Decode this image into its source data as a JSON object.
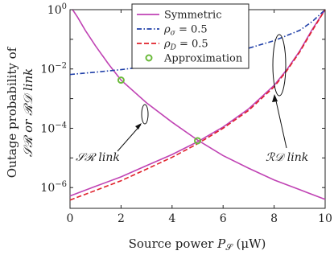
{
  "chart_data": {
    "type": "line",
    "xlabel_prefix": "Source power ",
    "xlabel_var": "P",
    "xlabel_sub": "𝒮",
    "xlabel_unit": " (μW)",
    "ylabel_line1": "Outage probability of",
    "ylabel_line2": "𝒮ℛ or ℛ𝒟 link",
    "xlim": [
      0,
      10
    ],
    "ylim_log10": [
      -6.7,
      0
    ],
    "log_scale_y": true,
    "grid": false,
    "x_ticks": [
      0,
      2,
      4,
      6,
      8,
      10
    ],
    "x_tick_labels": [
      "0",
      "2",
      "4",
      "6",
      "8",
      "10"
    ],
    "y_ticks_exp": [
      0,
      -2,
      -4,
      -6
    ],
    "y_tick_labels": [
      {
        "base": "10",
        "exp": "0"
      },
      {
        "base": "10",
        "exp": "−2"
      },
      {
        "base": "10",
        "exp": "−4"
      },
      {
        "base": "10",
        "exp": "−6"
      }
    ],
    "legend_position": "top-right",
    "legend": [
      {
        "label": "Symmetric",
        "style": "solid",
        "color": "#c043b4"
      },
      {
        "label": "ρσ = 0.5",
        "label_main": "ρ",
        "label_sub": "σ",
        "label_rest": " = 0.5",
        "style": "dashdot",
        "color": "#1f3fa8"
      },
      {
        "label": "ρD = 0.5",
        "label_main": "ρ",
        "label_sub": "D",
        "label_rest": " = 0.5",
        "style": "dashed",
        "color": "#e0202a"
      },
      {
        "label": "Approximation",
        "style": "marker",
        "color": "#6aba3a"
      }
    ],
    "series": [
      {
        "name": "Symmetric",
        "style": "solid",
        "color": "#c043b4",
        "segments": [
          {
            "x": [
              0.1,
              0.3,
              0.6,
              1,
              1.5,
              2,
              3,
              4,
              5,
              6,
              7,
              8,
              9,
              10
            ],
            "y": [
              1.0,
              0.55,
              0.2,
              0.06,
              0.015,
              0.0042,
              0.00072,
              0.00016,
              4e-05,
              1.2e-05,
              4.5e-06,
              1.8e-06,
              8.5e-07,
              4e-07
            ]
          },
          {
            "x": [
              0,
              1,
              2,
              3,
              4,
              5,
              6,
              7,
              8,
              8.5,
              9,
              9.5,
              10
            ],
            "y": [
              5.2e-07,
              1.1e-06,
              2.3e-06,
              5.5e-06,
              1.3e-05,
              3.5e-05,
              0.00011,
              0.00045,
              0.0028,
              0.0095,
              0.04,
              0.22,
              1.0
            ]
          }
        ]
      },
      {
        "name": "ρσ = 0.5",
        "style": "dashdot",
        "color": "#1f3fa8",
        "segments": [
          {
            "x": [
              0,
              1,
              2,
              3,
              4,
              5,
              6,
              7,
              8,
              9,
              9.5,
              10
            ],
            "y": [
              0.0065,
              0.0078,
              0.0095,
              0.012,
              0.016,
              0.022,
              0.032,
              0.05,
              0.09,
              0.2,
              0.4,
              1.0
            ]
          }
        ]
      },
      {
        "name": "ρD = 0.5",
        "style": "dashed",
        "color": "#e0202a",
        "segments": [
          {
            "x": [
              0,
              1,
              2,
              3,
              4,
              5,
              6,
              7,
              8,
              8.5,
              9,
              9.5,
              10
            ],
            "y": [
              3.8e-07,
              8e-07,
              1.7e-06,
              4.2e-06,
              1.05e-05,
              3e-05,
              0.0001,
              0.0004,
              0.0025,
              0.0088,
              0.037,
              0.2,
              1.0
            ]
          }
        ]
      },
      {
        "name": "Approximation",
        "style": "marker",
        "color": "#6aba3a",
        "points": [
          {
            "x": 2,
            "y": 0.0042
          },
          {
            "x": 5,
            "y": 3.8e-05
          }
        ]
      }
    ],
    "annotations": [
      {
        "text": "𝒮ℛ link"
      },
      {
        "text": "ℛ𝒟 link"
      }
    ]
  }
}
